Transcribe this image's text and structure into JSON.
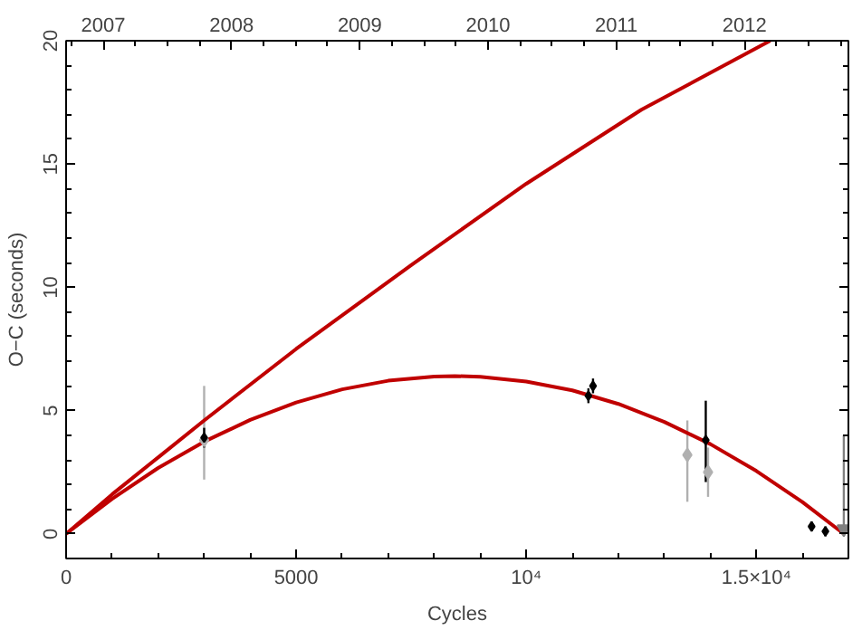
{
  "chart_data": {
    "type": "scatter",
    "xlabel": "Cycles",
    "ylabel": "O−C (seconds)",
    "xlim": [
      0,
      17000
    ],
    "ylim": [
      -1,
      20
    ],
    "xticks": [
      0,
      5000,
      {
        "value": 10000,
        "label": "10⁴"
      },
      {
        "value": 15000,
        "label": "1.5×10⁴"
      }
    ],
    "yticks": [
      0,
      5,
      10,
      15,
      20
    ],
    "x2lim": [
      2006.71,
      2012.81
    ],
    "x2ticks": [
      2007,
      2008,
      2009,
      2010,
      2011,
      2012
    ],
    "grid": false,
    "marker": "diamond",
    "series": [
      {
        "type": "line",
        "marker": "none",
        "color": "#c00000",
        "x": [
          0,
          1000,
          2000,
          3000,
          5000,
          7500,
          10000,
          12500,
          15300
        ],
        "values": [
          0,
          1.6,
          3.1,
          4.6,
          7.5,
          10.9,
          14.2,
          17.2,
          20
        ]
      },
      {
        "type": "line",
        "marker": "none",
        "color": "#c00000",
        "x": [
          0,
          1000,
          2000,
          3000,
          4000,
          5000,
          6000,
          7000,
          8000,
          8450,
          9000,
          10000,
          11000,
          12000,
          13000,
          14000,
          15000,
          16000,
          16900
        ],
        "values": [
          0,
          1.42,
          2.67,
          3.74,
          4.62,
          5.33,
          5.86,
          6.21,
          6.38,
          6.4,
          6.37,
          6.18,
          5.82,
          5.27,
          4.54,
          3.64,
          2.55,
          1.29,
          0
        ]
      },
      {
        "color": "#b0b0b0",
        "marker": "diamond",
        "x": [
          3000,
          13500,
          13950
        ],
        "values": [
          3.8,
          3.2,
          2.5
        ],
        "errors": [
          [
            2.2,
            6.0
          ],
          [
            1.3,
            4.6
          ],
          [
            1.5,
            3.5
          ]
        ]
      },
      {
        "color": "#000000",
        "x": [
          3000,
          11350,
          11450,
          13900,
          16200,
          16500
        ],
        "values": [
          3.9,
          5.6,
          6.0,
          3.8,
          0.3,
          0.1
        ],
        "errors": [
          [
            3.5,
            4.3
          ],
          [
            5.3,
            5.9
          ],
          [
            5.7,
            6.3
          ],
          [
            2.1,
            5.4
          ],
          [
            0.1,
            0.5
          ],
          [
            -0.1,
            0.3
          ]
        ]
      },
      {
        "color": "#808080",
        "marker": "triangle",
        "x": [
          16900
        ],
        "values": [
          0.2
        ],
        "errors": [
          [
            0.2,
            4.0
          ]
        ]
      }
    ]
  }
}
